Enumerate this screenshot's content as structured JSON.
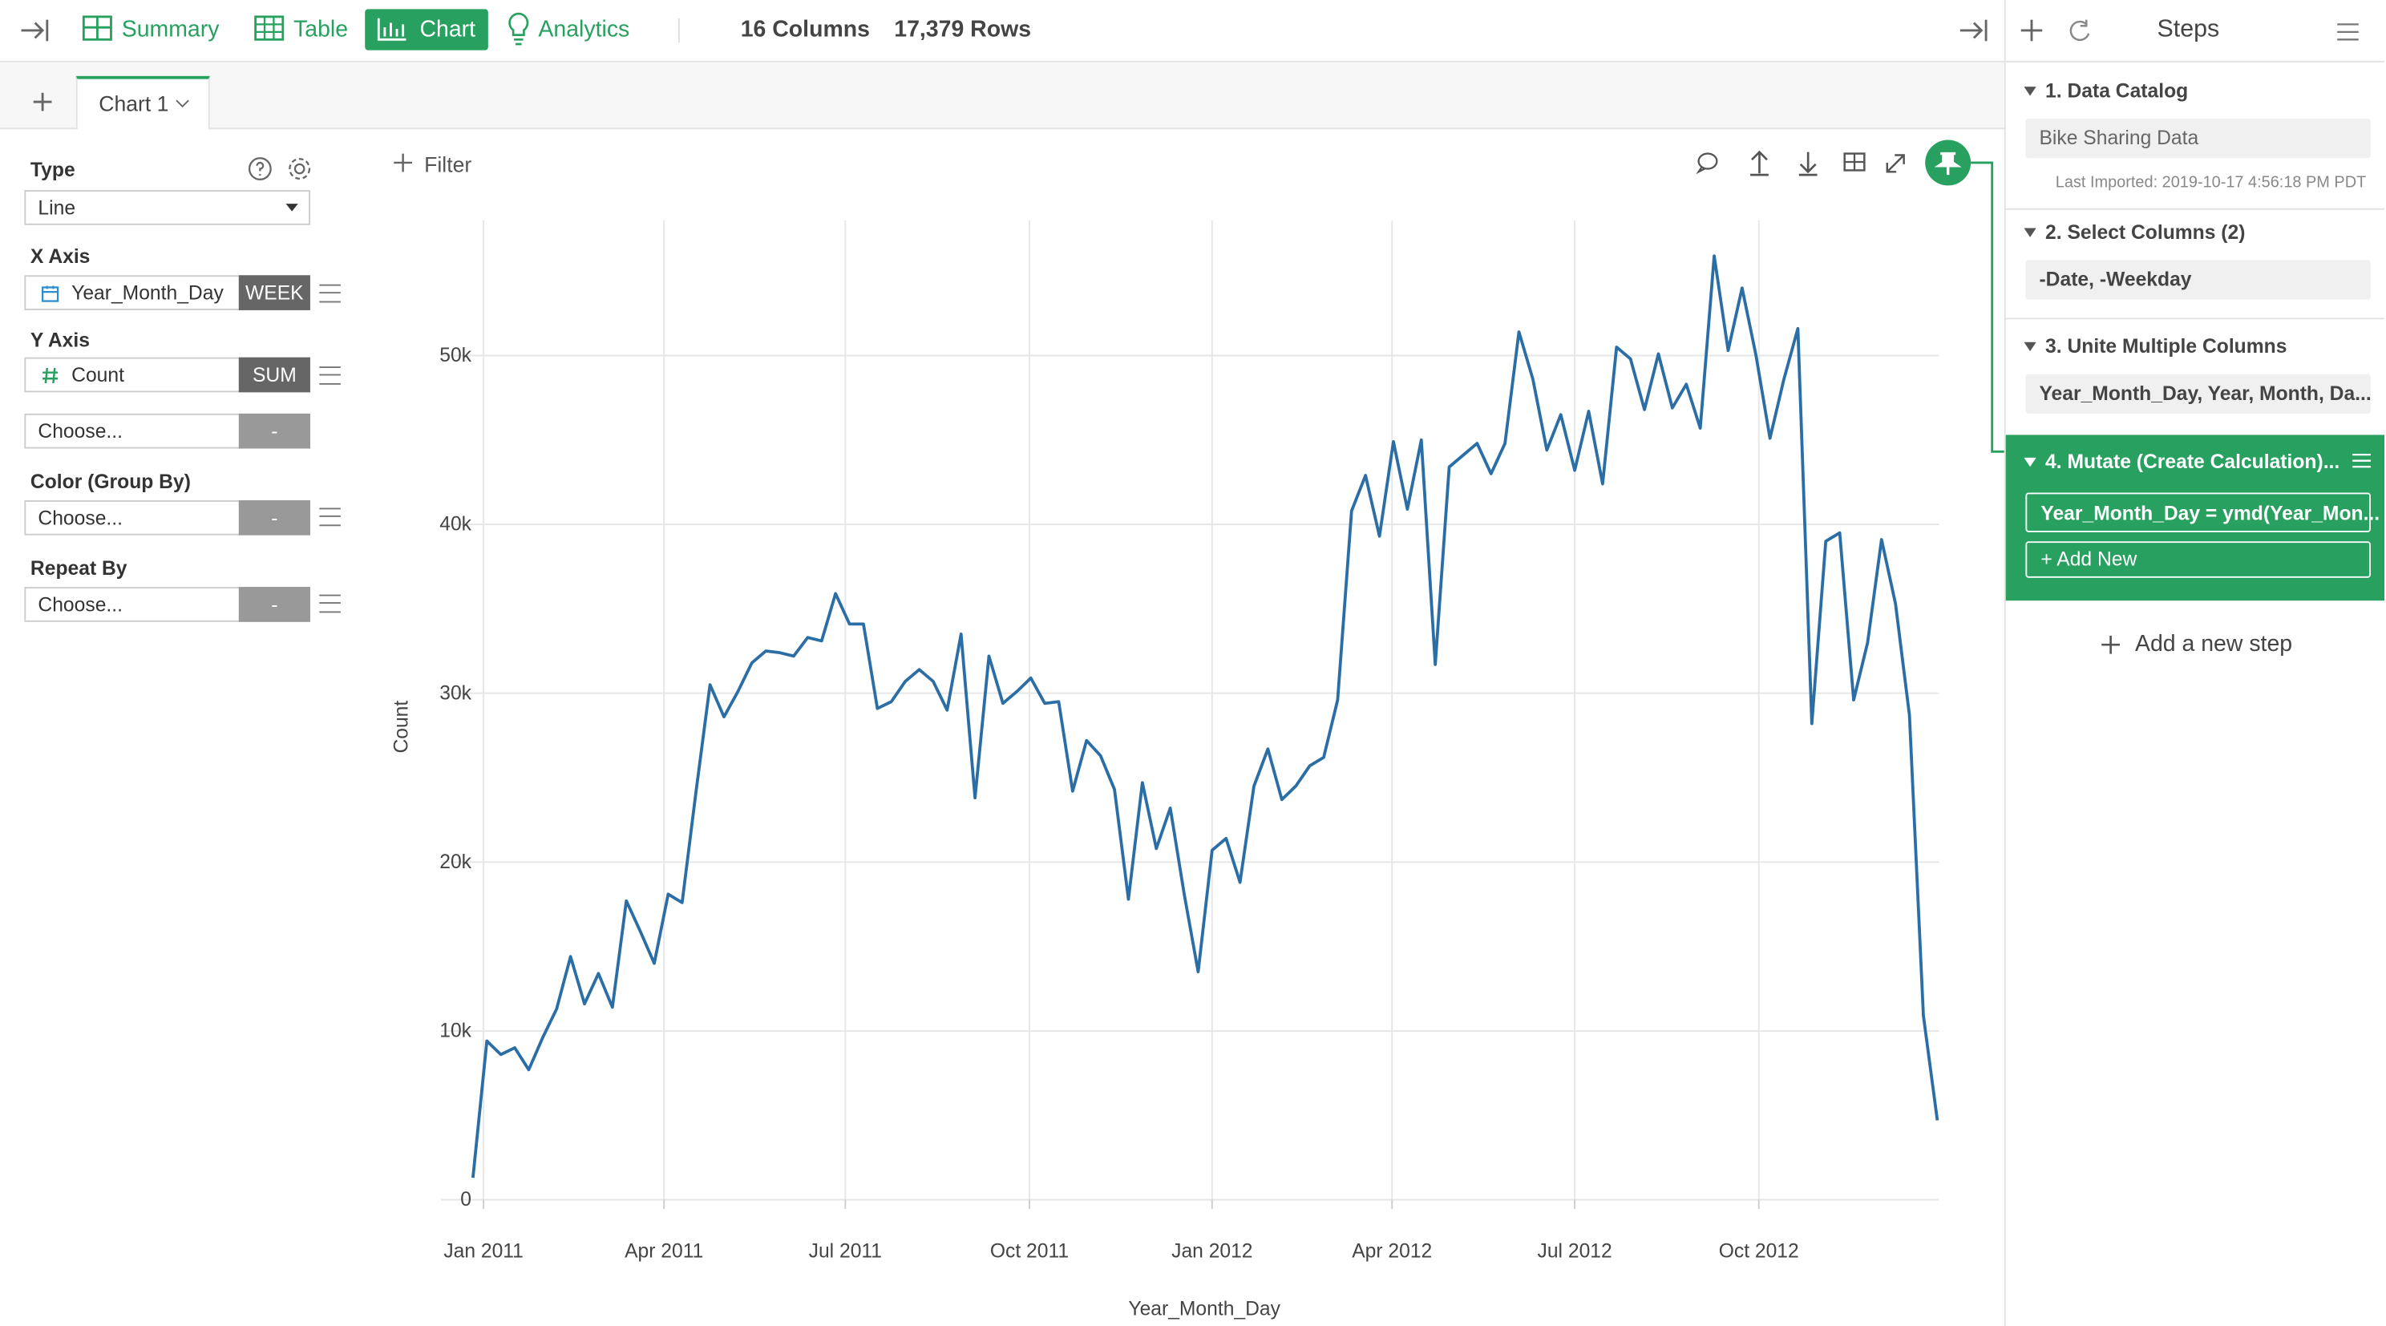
{
  "toolbar": {
    "tabs": [
      "Summary",
      "Table",
      "Chart",
      "Analytics"
    ],
    "columns": "16 Columns",
    "rows": "17,379 Rows"
  },
  "chart_tab": "Chart 1",
  "config": {
    "type_label": "Type",
    "type_value": "Line",
    "x_axis_label": "X Axis",
    "x_column": "Year_Month_Day",
    "x_agg": "WEEK",
    "y_axis_label": "Y Axis",
    "y_column": "Count",
    "y_agg": "SUM",
    "y_extra": "Choose...",
    "y_extra_agg": "-",
    "color_label": "Color (Group By)",
    "color_value": "Choose...",
    "color_agg": "-",
    "repeat_label": "Repeat By",
    "repeat_value": "Choose...",
    "repeat_agg": "-"
  },
  "filter": "Filter",
  "steps": {
    "title": "Steps",
    "items": [
      {
        "title": "1. Data Catalog",
        "detail": "Bike Sharing Data",
        "note": "Last Imported: 2019-10-17 4:56:18 PM PDT"
      },
      {
        "title": "2. Select Columns (2)",
        "detail": "-Date, -Weekday"
      },
      {
        "title": "3. Unite Multiple Columns",
        "detail": "Year_Month_Day, Year, Month, Da..."
      },
      {
        "title": "4. Mutate (Create Calculation)...",
        "detail": "Year_Month_Day = ymd(Year_Mon..."
      }
    ],
    "add_new": "+ Add New",
    "add_step": "Add a new step"
  },
  "chart_data": {
    "type": "line",
    "x_label": "Year_Month_Day",
    "y_label": "Count",
    "color": "#2b6ea6",
    "grid": true,
    "values": [
      1300,
      9400,
      8600,
      9000,
      7700,
      9600,
      11300,
      14400,
      11600,
      13400,
      11400,
      17700,
      15900,
      14000,
      18100,
      17600,
      24200,
      30500,
      28600,
      30100,
      31800,
      32500,
      32400,
      32200,
      33300,
      33100,
      35900,
      34100,
      34100,
      29100,
      29500,
      30700,
      31400,
      30700,
      29000,
      33500,
      23800,
      32200,
      29400,
      30100,
      30900,
      29400,
      29500,
      24200,
      27200,
      26300,
      24300,
      17800,
      24700,
      20800,
      23200,
      18100,
      13500,
      20700,
      21400,
      18800,
      24500,
      26700,
      23700,
      24500,
      25700,
      26200,
      29600,
      40800,
      42900,
      39300,
      44900,
      40900,
      45000,
      31700,
      43400,
      44100,
      44800,
      43000,
      44800,
      51400,
      48600,
      44400,
      46500,
      43200,
      46700,
      42400,
      50500,
      49800,
      46800,
      50100,
      46900,
      48300,
      45700,
      55900,
      50300,
      54000,
      50000,
      45100,
      48600,
      51600,
      28200,
      39000,
      39500,
      29600,
      33000,
      39100,
      35300,
      28700,
      10900,
      4700
    ],
    "xlim": [
      0,
      105
    ],
    "xticks": [
      {
        "value": 0.76,
        "label": "Jan 2011"
      },
      {
        "value": 13.7,
        "label": "Apr 2011"
      },
      {
        "value": 26.7,
        "label": "Jul 2011"
      },
      {
        "value": 39.9,
        "label": "Oct 2011"
      },
      {
        "value": 53.0,
        "label": "Jan 2012"
      },
      {
        "value": 65.9,
        "label": "Apr 2012"
      },
      {
        "value": 79.0,
        "label": "Jul 2012"
      },
      {
        "value": 92.2,
        "label": "Oct 2012"
      }
    ],
    "ylim": [
      0,
      58000
    ],
    "yticks": [
      0,
      {
        "value": 10000,
        "label": "10k"
      },
      {
        "value": 20000,
        "label": "20k"
      },
      {
        "value": 30000,
        "label": "30k"
      },
      {
        "value": 40000,
        "label": "40k"
      },
      {
        "value": 50000,
        "label": "50k"
      }
    ]
  }
}
